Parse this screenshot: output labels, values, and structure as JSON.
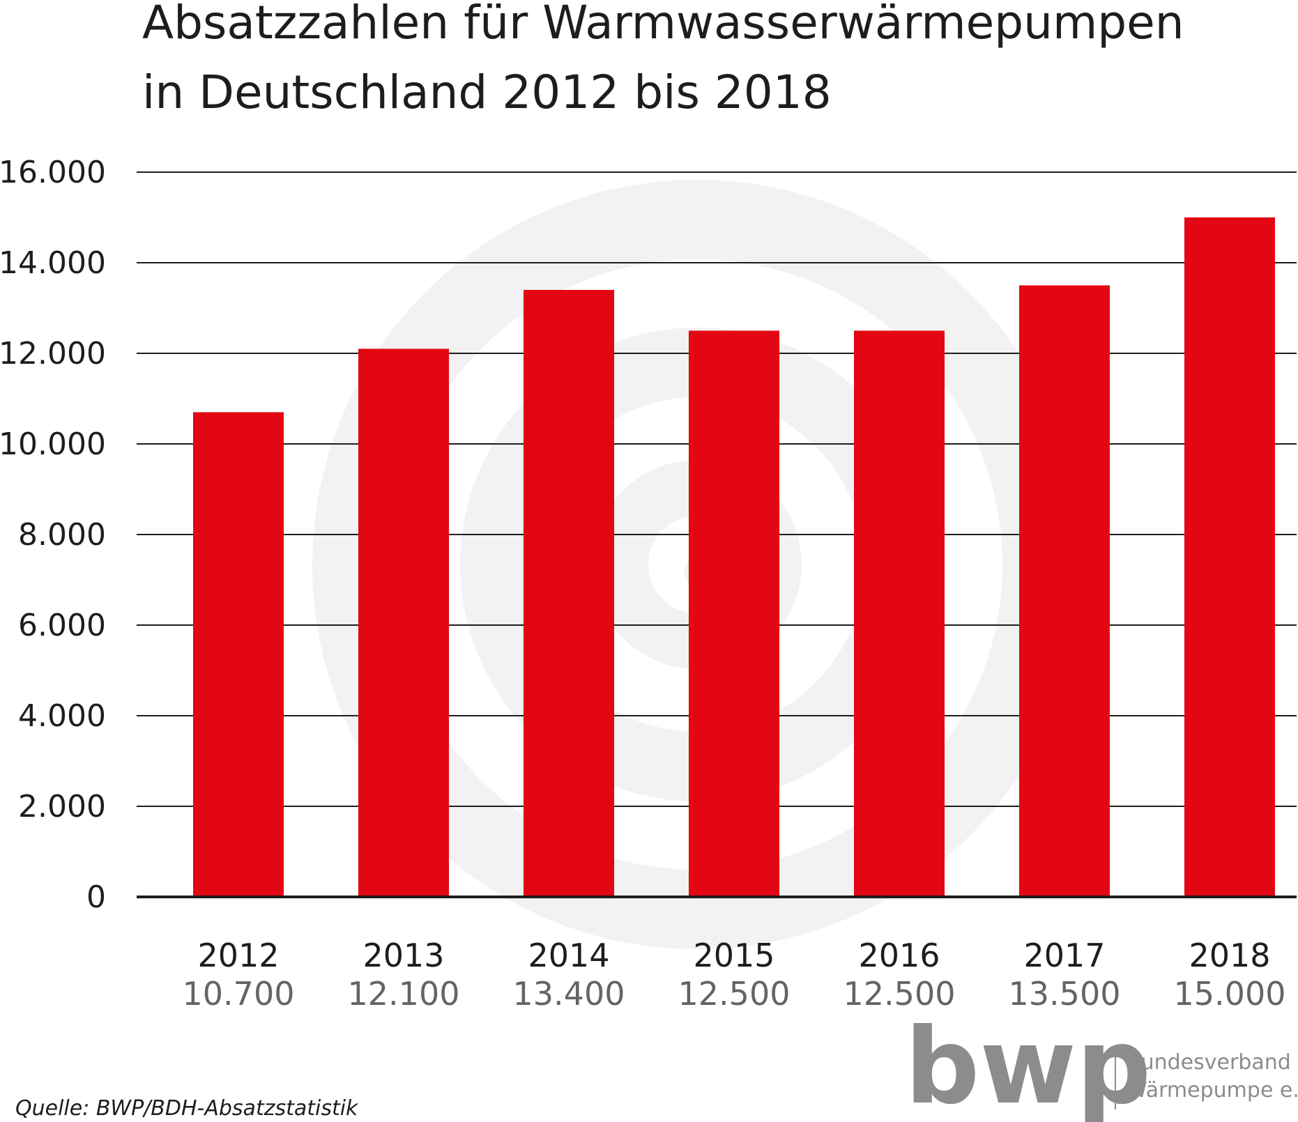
{
  "chart_data": {
    "type": "bar",
    "title_lines": [
      "Absatzzahlen für Warmwasserwärmepumpen",
      "in Deutschland 2012 bis 2018"
    ],
    "categories": [
      "2012",
      "2013",
      "2014",
      "2015",
      "2016",
      "2017",
      "2018"
    ],
    "values": [
      10700,
      12100,
      13400,
      12500,
      12500,
      13500,
      15000
    ],
    "value_labels": [
      "10.700",
      "12.100",
      "13.400",
      "12.500",
      "12.500",
      "13.500",
      "15.000"
    ],
    "y_ticks": [
      0,
      2000,
      4000,
      6000,
      8000,
      10000,
      12000,
      14000,
      16000
    ],
    "y_tick_labels": [
      "0",
      "2.000",
      "4.000",
      "6.000",
      "8.000",
      "10.000",
      "12.000",
      "14.000",
      "16.000"
    ],
    "ylim": [
      0,
      16000
    ],
    "grid": true,
    "bar_color": "#e30613",
    "source": "Quelle: BWP/BDH-Absatzstatistik"
  },
  "logo": {
    "letters": "bwp",
    "line1": "Bundesverband",
    "line2": "Wärmepumpe e.V.",
    "color": "#8c8c8c"
  }
}
